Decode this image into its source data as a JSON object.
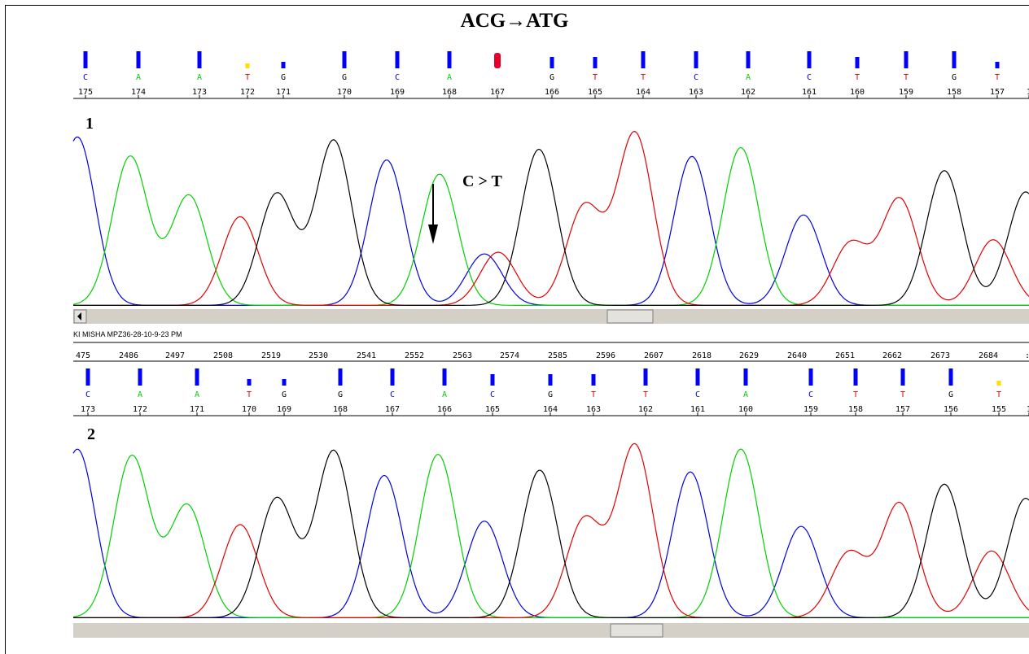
{
  "title": "ACG→ATG",
  "colors": {
    "A": "#00d000",
    "C": "#0000e0",
    "G": "#000000",
    "T": "#e00000",
    "bar_low": "#ffdf00",
    "bar_mut": "#e4002b"
  },
  "icons": {
    "scroll_left": "scroll-left-arrow"
  },
  "panel1": {
    "label": "1",
    "annotation": "C > T",
    "bases": [
      {
        "b": "C",
        "n": "175",
        "q": 3
      },
      {
        "b": "A",
        "n": "174",
        "q": 3
      },
      {
        "b": "A",
        "n": "173",
        "q": 3
      },
      {
        "b": "T",
        "n": "172",
        "q": 0
      },
      {
        "b": "G",
        "n": "171",
        "q": 1
      },
      {
        "b": "G",
        "n": "170",
        "q": 3
      },
      {
        "b": "C",
        "n": "169",
        "q": 3
      },
      {
        "b": "A",
        "n": "168",
        "q": 3
      },
      {
        "b": "",
        "n": "167",
        "q": 4
      },
      {
        "b": "G",
        "n": "166",
        "q": 2
      },
      {
        "b": "T",
        "n": "165",
        "q": 2
      },
      {
        "b": "T",
        "n": "164",
        "q": 3
      },
      {
        "b": "C",
        "n": "163",
        "q": 3
      },
      {
        "b": "A",
        "n": "162",
        "q": 3
      },
      {
        "b": "C",
        "n": "161",
        "q": 3
      },
      {
        "b": "T",
        "n": "160",
        "q": 2
      },
      {
        "b": "T",
        "n": "159",
        "q": 3
      },
      {
        "b": "G",
        "n": "158",
        "q": 3
      },
      {
        "b": "T",
        "n": "157",
        "q": 1
      },
      {
        "b": "",
        "n": "1",
        "q": -1
      }
    ]
  },
  "run_name": "KI MISHA MPZ36-28-10-9-23 PM",
  "scan_numbers": [
    "475",
    "2486",
    "2497",
    "2508",
    "2519",
    "2530",
    "2541",
    "2552",
    "2563",
    "2574",
    "2585",
    "2596",
    "2607",
    "2618",
    "2629",
    "2640",
    "2651",
    "2662",
    "2673",
    "2684",
    ":"
  ],
  "panel2": {
    "label": "2",
    "bases": [
      {
        "b": "C",
        "n": "173",
        "q": 3
      },
      {
        "b": "A",
        "n": "172",
        "q": 3
      },
      {
        "b": "A",
        "n": "171",
        "q": 3
      },
      {
        "b": "T",
        "n": "170",
        "q": 1
      },
      {
        "b": "G",
        "n": "169",
        "q": 1
      },
      {
        "b": "G",
        "n": "168",
        "q": 3
      },
      {
        "b": "C",
        "n": "167",
        "q": 3
      },
      {
        "b": "A",
        "n": "166",
        "q": 3
      },
      {
        "b": "C",
        "n": "165",
        "q": 2
      },
      {
        "b": "G",
        "n": "164",
        "q": 2
      },
      {
        "b": "T",
        "n": "163",
        "q": 2
      },
      {
        "b": "T",
        "n": "162",
        "q": 3
      },
      {
        "b": "C",
        "n": "161",
        "q": 3
      },
      {
        "b": "A",
        "n": "160",
        "q": 3
      },
      {
        "b": "C",
        "n": "159",
        "q": 3
      },
      {
        "b": "T",
        "n": "158",
        "q": 3
      },
      {
        "b": "T",
        "n": "157",
        "q": 3
      },
      {
        "b": "G",
        "n": "156",
        "q": 3
      },
      {
        "b": "T",
        "n": "155",
        "q": 0
      },
      {
        "b": "",
        "n": "1",
        "q": -1
      }
    ]
  },
  "chart_data": [
    {
      "type": "line",
      "series": [
        {
          "name": "C",
          "peaks": [
            [
              95,
              0.95
            ],
            [
              475,
              0.82
            ],
            [
              595,
              0.29
            ],
            [
              850,
              0.84
            ],
            [
              987,
              0.51
            ]
          ]
        },
        {
          "name": "A",
          "peaks": [
            [
              160,
              0.84
            ],
            [
              232,
              0.62
            ],
            [
              540,
              0.74
            ],
            [
              910,
              0.89
            ]
          ]
        },
        {
          "name": "T",
          "peaks": [
            [
              295,
              0.5
            ],
            [
              612,
              0.3
            ],
            [
              718,
              0.56
            ],
            [
              780,
              0.97
            ],
            [
              1045,
              0.35
            ],
            [
              1105,
              0.6
            ],
            [
              1220,
              0.37
            ]
          ]
        },
        {
          "name": "G",
          "peaks": [
            [
              340,
              0.63
            ],
            [
              410,
              0.93
            ],
            [
              662,
              0.88
            ],
            [
              1160,
              0.76
            ],
            [
              1260,
              0.64
            ]
          ]
        }
      ]
    },
    {
      "type": "line",
      "series": [
        {
          "name": "C",
          "peaks": [
            [
              95,
              0.96
            ],
            [
              472,
              0.81
            ],
            [
              595,
              0.55
            ],
            [
              848,
              0.83
            ],
            [
              984,
              0.52
            ]
          ]
        },
        {
          "name": "A",
          "peaks": [
            [
              162,
              0.92
            ],
            [
              230,
              0.64
            ],
            [
              538,
              0.93
            ],
            [
              910,
              0.96
            ]
          ]
        },
        {
          "name": "T",
          "peaks": [
            [
              295,
              0.53
            ],
            [
              718,
              0.56
            ],
            [
              780,
              0.98
            ],
            [
              1043,
              0.37
            ],
            [
              1105,
              0.65
            ],
            [
              1218,
              0.38
            ]
          ]
        },
        {
          "name": "G",
          "peaks": [
            [
              340,
              0.68
            ],
            [
              410,
              0.95
            ],
            [
              663,
              0.84
            ],
            [
              1160,
              0.76
            ],
            [
              1260,
              0.68
            ]
          ]
        }
      ]
    }
  ]
}
